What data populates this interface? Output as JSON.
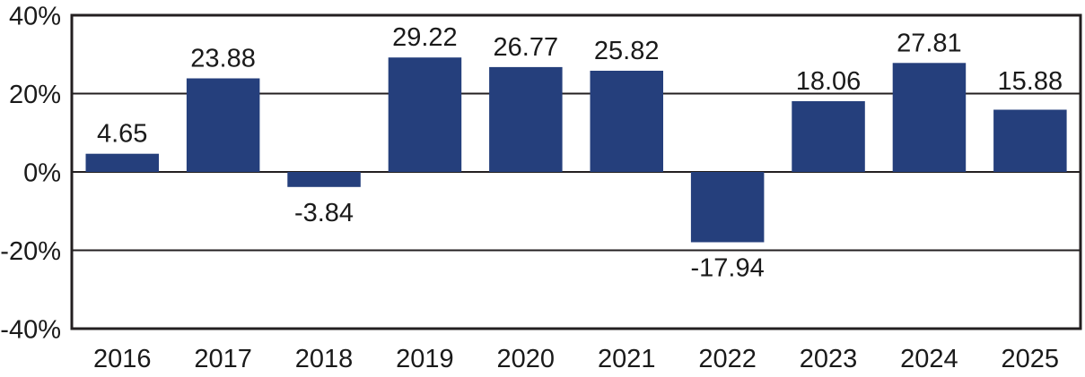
{
  "chart_data": {
    "type": "bar",
    "title": "",
    "xlabel": "",
    "ylabel": "",
    "categories": [
      "2016",
      "2017",
      "2018",
      "2019",
      "2020",
      "2021",
      "2022",
      "2023",
      "2024",
      "2025"
    ],
    "values": [
      4.65,
      23.88,
      -3.84,
      29.22,
      26.77,
      25.82,
      -17.94,
      18.06,
      27.81,
      15.88
    ],
    "value_labels": [
      "4.65",
      "23.88",
      "-3.84",
      "29.22",
      "26.77",
      "25.82",
      "-17.94",
      "18.06",
      "27.81",
      "15.88"
    ],
    "ylim": [
      -40,
      40
    ],
    "yticks": [
      {
        "value": 40,
        "label": "40%"
      },
      {
        "value": 20,
        "label": "20%"
      },
      {
        "value": 0,
        "label": "0%"
      },
      {
        "value": -20,
        "label": "-20%"
      },
      {
        "value": -40,
        "label": "-40%"
      }
    ],
    "grid": true,
    "legend": "none",
    "colors": {
      "bar": "#253F7C",
      "axis": "#231F20",
      "text": "#1A1A1A",
      "background": "#FFFFFF"
    }
  }
}
